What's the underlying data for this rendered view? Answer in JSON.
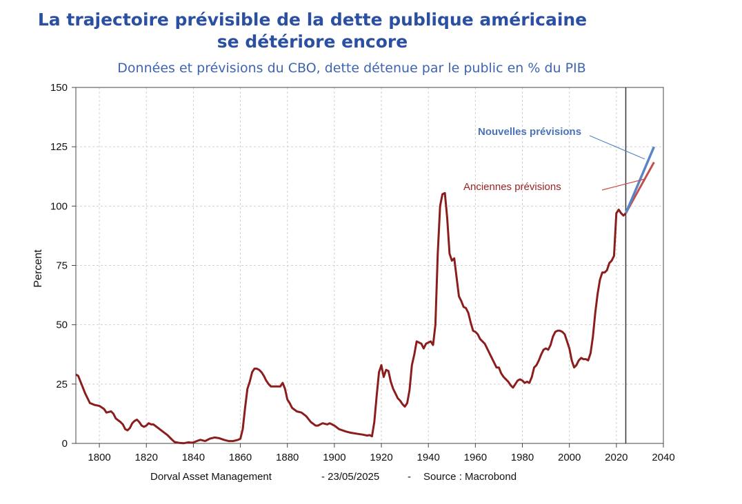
{
  "header": {
    "title_line1": "La trajectoire prévisible de la dette publique américaine",
    "title_line2": "se détériore encore",
    "subtitle": "Données et prévisions du CBO, dette détenue par le public en % du PIB"
  },
  "footer": {
    "brand": "Dorval Asset Management",
    "date": "-  23/05/2025",
    "separator": "-",
    "source": "Source : Macrobond"
  },
  "colors": {
    "historical": "#8b1d1d",
    "old_forecast": "#c0504d",
    "new_forecast": "#5b84c4",
    "title": "#2a4fa3"
  },
  "chart_data": {
    "type": "line",
    "xlim": [
      1790,
      2040
    ],
    "ylim": [
      0,
      150
    ],
    "ylabel": "Percent",
    "xticks": [
      1800,
      1820,
      1840,
      1860,
      1880,
      1900,
      1920,
      1940,
      1960,
      1980,
      2000,
      2020,
      2040
    ],
    "yticks": [
      0,
      25,
      50,
      75,
      100,
      125,
      150
    ],
    "grid": true,
    "vertical_marker_x": 2024,
    "series": [
      {
        "key": "historical",
        "points": [
          [
            1790,
            29
          ],
          [
            1791,
            28.5
          ],
          [
            1792,
            26
          ],
          [
            1794,
            21
          ],
          [
            1796,
            17
          ],
          [
            1798,
            16.2
          ],
          [
            1800,
            15.8
          ],
          [
            1802,
            14.5
          ],
          [
            1803,
            13
          ],
          [
            1805,
            13.5
          ],
          [
            1806,
            12.5
          ],
          [
            1807,
            10.5
          ],
          [
            1809,
            9
          ],
          [
            1810,
            8
          ],
          [
            1811,
            6
          ],
          [
            1812,
            5.5
          ],
          [
            1813,
            6.5
          ],
          [
            1814,
            8.5
          ],
          [
            1815,
            9.5
          ],
          [
            1816,
            10
          ],
          [
            1817,
            9
          ],
          [
            1818,
            7.5
          ],
          [
            1819,
            7
          ],
          [
            1820,
            7.5
          ],
          [
            1821,
            8.5
          ],
          [
            1822,
            8
          ],
          [
            1823,
            8
          ],
          [
            1825,
            6.5
          ],
          [
            1827,
            5
          ],
          [
            1829,
            3.5
          ],
          [
            1830,
            2.5
          ],
          [
            1831,
            1.5
          ],
          [
            1832,
            0.6
          ],
          [
            1834,
            0.2
          ],
          [
            1836,
            0.1
          ],
          [
            1838,
            0.5
          ],
          [
            1839,
            0.3
          ],
          [
            1840,
            0.4
          ],
          [
            1842,
            1.2
          ],
          [
            1843,
            1.5
          ],
          [
            1845,
            1
          ],
          [
            1847,
            2
          ],
          [
            1849,
            2.5
          ],
          [
            1851,
            2.2
          ],
          [
            1853,
            1.5
          ],
          [
            1855,
            1
          ],
          [
            1857,
            1
          ],
          [
            1859,
            1.5
          ],
          [
            1860,
            2
          ],
          [
            1861,
            6
          ],
          [
            1862,
            15
          ],
          [
            1863,
            23
          ],
          [
            1864,
            26
          ],
          [
            1865,
            30
          ],
          [
            1866,
            31.5
          ],
          [
            1867,
            31.5
          ],
          [
            1868,
            31
          ],
          [
            1869,
            30
          ],
          [
            1870,
            28.5
          ],
          [
            1871,
            26.5
          ],
          [
            1872,
            25
          ],
          [
            1873,
            24
          ],
          [
            1875,
            24
          ],
          [
            1877,
            24
          ],
          [
            1878,
            25.5
          ],
          [
            1879,
            23
          ],
          [
            1880,
            18.5
          ],
          [
            1881,
            17
          ],
          [
            1882,
            15
          ],
          [
            1884,
            13.5
          ],
          [
            1886,
            13
          ],
          [
            1888,
            11.5
          ],
          [
            1890,
            9
          ],
          [
            1892,
            7.5
          ],
          [
            1893,
            7.5
          ],
          [
            1895,
            8.5
          ],
          [
            1897,
            8
          ],
          [
            1898,
            8.5
          ],
          [
            1899,
            8
          ],
          [
            1900,
            7.5
          ],
          [
            1902,
            6
          ],
          [
            1905,
            5
          ],
          [
            1907,
            4.5
          ],
          [
            1910,
            4
          ],
          [
            1912,
            3.7
          ],
          [
            1914,
            3.3
          ],
          [
            1915,
            3.5
          ],
          [
            1916,
            3
          ],
          [
            1917,
            9
          ],
          [
            1918,
            20
          ],
          [
            1919,
            30
          ],
          [
            1920,
            33
          ],
          [
            1921,
            28
          ],
          [
            1922,
            31
          ],
          [
            1923,
            30.5
          ],
          [
            1924,
            26
          ],
          [
            1925,
            23
          ],
          [
            1926,
            21
          ],
          [
            1927,
            19
          ],
          [
            1928,
            18
          ],
          [
            1929,
            16.5
          ],
          [
            1930,
            15.5
          ],
          [
            1931,
            17
          ],
          [
            1932,
            22.5
          ],
          [
            1933,
            33
          ],
          [
            1934,
            37.5
          ],
          [
            1935,
            43
          ],
          [
            1936,
            42.5
          ],
          [
            1937,
            42
          ],
          [
            1938,
            40
          ],
          [
            1939,
            42
          ],
          [
            1940,
            42.5
          ],
          [
            1941,
            43
          ],
          [
            1942,
            41.5
          ],
          [
            1943,
            50
          ],
          [
            1944,
            80
          ],
          [
            1945,
            100
          ],
          [
            1946,
            105
          ],
          [
            1947,
            105.5
          ],
          [
            1948,
            95
          ],
          [
            1949,
            80
          ],
          [
            1950,
            77
          ],
          [
            1951,
            78
          ],
          [
            1952,
            70
          ],
          [
            1953,
            62
          ],
          [
            1954,
            60
          ],
          [
            1955,
            57.5
          ],
          [
            1956,
            57
          ],
          [
            1957,
            55
          ],
          [
            1958,
            51
          ],
          [
            1959,
            47.5
          ],
          [
            1960,
            47
          ],
          [
            1961,
            46
          ],
          [
            1962,
            44
          ],
          [
            1963,
            43
          ],
          [
            1964,
            42
          ],
          [
            1965,
            40
          ],
          [
            1966,
            38
          ],
          [
            1967,
            36
          ],
          [
            1968,
            34
          ],
          [
            1969,
            32
          ],
          [
            1970,
            32
          ],
          [
            1971,
            29.5
          ],
          [
            1972,
            28
          ],
          [
            1973,
            27
          ],
          [
            1974,
            26
          ],
          [
            1975,
            24.5
          ],
          [
            1976,
            23.5
          ],
          [
            1977,
            25
          ],
          [
            1978,
            26.5
          ],
          [
            1979,
            27
          ],
          [
            1980,
            26.5
          ],
          [
            1981,
            25.5
          ],
          [
            1982,
            26
          ],
          [
            1983,
            25.5
          ],
          [
            1984,
            28
          ],
          [
            1985,
            32
          ],
          [
            1986,
            33
          ],
          [
            1987,
            35
          ],
          [
            1988,
            37.5
          ],
          [
            1989,
            39.5
          ],
          [
            1990,
            40
          ],
          [
            1991,
            39.5
          ],
          [
            1992,
            41.5
          ],
          [
            1993,
            45
          ],
          [
            1994,
            47
          ],
          [
            1995,
            47.5
          ],
          [
            1996,
            47.5
          ],
          [
            1997,
            47
          ],
          [
            1998,
            46
          ],
          [
            1999,
            43
          ],
          [
            2000,
            40
          ],
          [
            2001,
            35
          ],
          [
            2002,
            32
          ],
          [
            2003,
            33
          ],
          [
            2004,
            35
          ],
          [
            2005,
            36
          ],
          [
            2006,
            35.5
          ],
          [
            2007,
            35.5
          ],
          [
            2008,
            35
          ],
          [
            2009,
            38
          ],
          [
            2010,
            45
          ],
          [
            2011,
            55
          ],
          [
            2012,
            63
          ],
          [
            2013,
            69
          ],
          [
            2014,
            72
          ],
          [
            2015,
            72
          ],
          [
            2016,
            73
          ],
          [
            2017,
            76
          ],
          [
            2018,
            77
          ],
          [
            2019,
            79
          ],
          [
            2020,
            97
          ],
          [
            2021,
            98.5
          ],
          [
            2022,
            97
          ],
          [
            2023,
            96
          ],
          [
            2024,
            97
          ]
        ]
      },
      {
        "key": "old_forecast",
        "name": "Anciennes prévisions",
        "points": [
          [
            2024,
            97
          ],
          [
            2036,
            118.5
          ]
        ]
      },
      {
        "key": "new_forecast",
        "name": "Nouvelles prévisions",
        "points": [
          [
            2024,
            97
          ],
          [
            2036,
            125
          ]
        ]
      }
    ]
  }
}
